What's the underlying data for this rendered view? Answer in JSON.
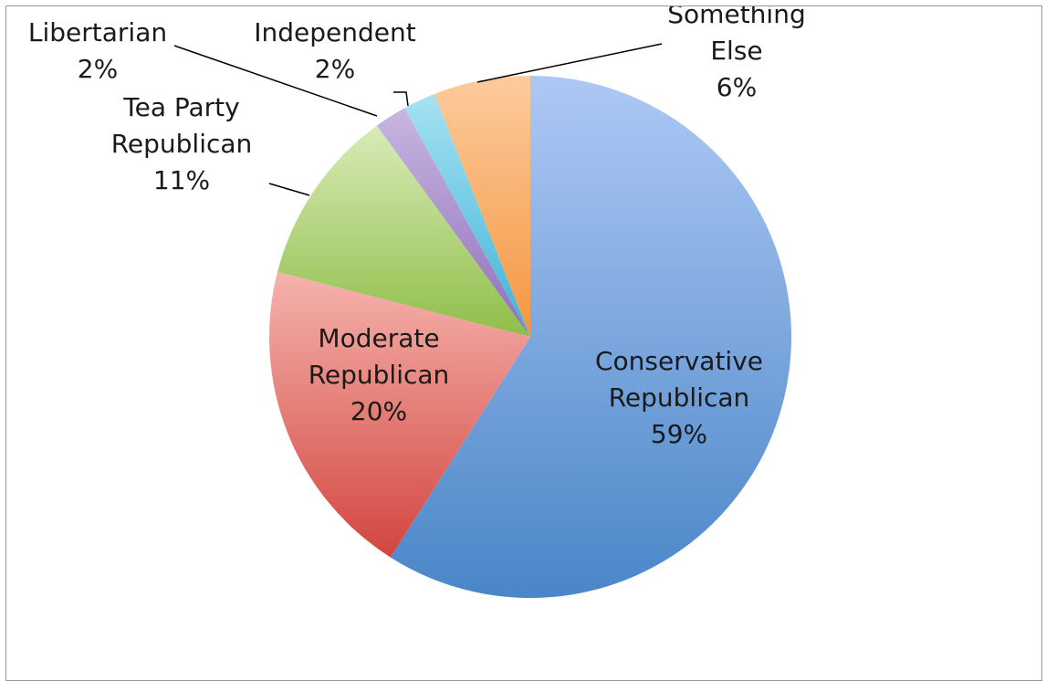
{
  "chart_data": {
    "type": "pie",
    "title": "",
    "start_angle_deg": 0,
    "direction": "clockwise",
    "slices": [
      {
        "label": [
          "Conservative",
          "Republican"
        ],
        "value": 59,
        "value_label": "59%",
        "color_light": "#aec8f4",
        "color_dark": "#4a86c8"
      },
      {
        "label": [
          "Moderate",
          "Republican"
        ],
        "value": 20,
        "value_label": "20%",
        "color_light": "#f6b3ad",
        "color_dark": "#d2463f"
      },
      {
        "label": [
          "Tea Party",
          "Republican"
        ],
        "value": 11,
        "value_label": "11%",
        "color_light": "#d8ebb8",
        "color_dark": "#8fbe48"
      },
      {
        "label": [
          "Libertarian"
        ],
        "value": 2,
        "value_label": "2%",
        "color_light": "#c8b6e0",
        "color_dark": "#8e6fbb"
      },
      {
        "label": [
          "Independent"
        ],
        "value": 2,
        "value_label": "2%",
        "color_light": "#a4e2f2",
        "color_dark": "#3fb2d8"
      },
      {
        "label": [
          "Something",
          "Else"
        ],
        "value": 6,
        "value_label": "6%",
        "color_light": "#fccb9c",
        "color_dark": "#f59640"
      }
    ]
  }
}
